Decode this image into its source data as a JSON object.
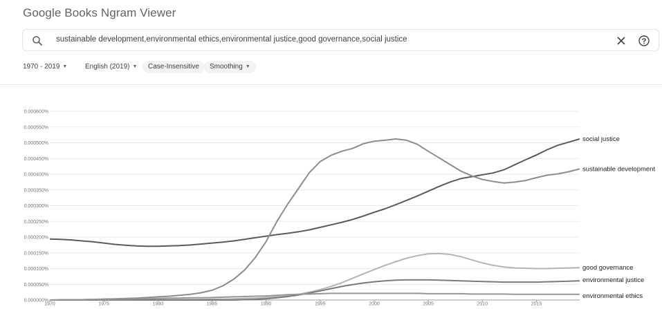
{
  "header": {
    "logo": "Google",
    "title": "Books Ngram Viewer"
  },
  "search": {
    "query": "sustainable development,environmental ethics,environmental justice,good governance,social justice",
    "icons": [
      "search-icon",
      "close-icon",
      "help-icon"
    ]
  },
  "filters": {
    "year_range": "1970 - 2019",
    "corpus": "English (2019)",
    "case": "Case-Insensitive",
    "smoothing": "Smoothing"
  },
  "chart_data": {
    "type": "line",
    "title": "",
    "xlabel": "",
    "ylabel": "",
    "x": [
      1970,
      1971,
      1972,
      1973,
      1974,
      1975,
      1976,
      1977,
      1978,
      1979,
      1980,
      1981,
      1982,
      1983,
      1984,
      1985,
      1986,
      1987,
      1988,
      1989,
      1990,
      1991,
      1992,
      1993,
      1994,
      1995,
      1996,
      1997,
      1998,
      1999,
      2000,
      2001,
      2002,
      2003,
      2004,
      2005,
      2006,
      2007,
      2008,
      2009,
      2010,
      2011,
      2012,
      2013,
      2014,
      2015,
      2016,
      2017,
      2018,
      2019
    ],
    "xticks": [
      "1970",
      "1975",
      "1980",
      "1985",
      "1990",
      "1995",
      "2000",
      "2005",
      "2010",
      "2015"
    ],
    "yticks": [
      "0.000000%",
      "0.000050%",
      "0.000100%",
      "0.000150%",
      "0.000200%",
      "0.000250%",
      "0.000300%",
      "0.000350%",
      "0.000400%",
      "0.000450%",
      "0.000500%",
      "0.000550%",
      "0.000600%"
    ],
    "ylim": [
      0,
      0.0006
    ],
    "grid": true,
    "series": [
      {
        "name": "social justice",
        "color": "#5a5a5a",
        "values": [
          0.000194,
          0.000193,
          0.000191,
          0.000188,
          0.000185,
          0.000181,
          0.000177,
          0.000174,
          0.000172,
          0.000171,
          0.000171,
          0.000172,
          0.000173,
          0.000175,
          0.000178,
          0.000181,
          0.000184,
          0.000188,
          0.000193,
          0.000198,
          0.000203,
          0.000208,
          0.000212,
          0.000217,
          0.000223,
          0.000231,
          0.000239,
          0.000247,
          0.000256,
          0.000267,
          0.000279,
          0.00029,
          0.000303,
          0.000317,
          0.000331,
          0.000346,
          0.000361,
          0.000375,
          0.000386,
          0.000392,
          0.000398,
          0.000404,
          0.000414,
          0.00043,
          0.000446,
          0.000461,
          0.000478,
          0.000492,
          0.000502,
          0.000512
        ]
      },
      {
        "name": "sustainable development",
        "color": "#8c8c8c",
        "values": [
          0.0,
          0.0,
          0.0,
          1e-06,
          2e-06,
          3e-06,
          4e-06,
          5e-06,
          6e-06,
          8e-06,
          1e-05,
          1.2e-05,
          1.5e-05,
          1.8e-05,
          2.3e-05,
          3.1e-05,
          4.5e-05,
          6.6e-05,
          9.5e-05,
          0.000135,
          0.000186,
          0.00025,
          0.000305,
          0.000355,
          0.000405,
          0.00044,
          0.00046,
          0.000473,
          0.000482,
          0.000497,
          0.000505,
          0.000508,
          0.000512,
          0.000508,
          0.000495,
          0.000473,
          0.000452,
          0.000431,
          0.00041,
          0.000395,
          0.000383,
          0.000377,
          0.000372,
          0.000375,
          0.00038,
          0.000389,
          0.000397,
          0.000401,
          0.000408,
          0.000417
        ]
      },
      {
        "name": "good governance",
        "color": "#b4b4b4",
        "values": [
          0,
          0,
          0,
          0,
          0,
          0,
          0,
          0,
          0,
          0,
          1e-06,
          1e-06,
          1e-06,
          2e-06,
          2e-06,
          3e-06,
          3e-06,
          4e-06,
          5e-06,
          6e-06,
          8e-06,
          1e-05,
          1.3e-05,
          1.8e-05,
          2.5e-05,
          3.3e-05,
          4.3e-05,
          5.5e-05,
          6.9e-05,
          8.3e-05,
          9.7e-05,
          0.00011,
          0.000122,
          0.000133,
          0.000141,
          0.000147,
          0.000148,
          0.000145,
          0.000138,
          0.000128,
          0.000118,
          0.00011,
          0.000105,
          0.000102,
          0.000101,
          0.0001,
          0.0001,
          0.000101,
          0.000102,
          0.000103
        ]
      },
      {
        "name": "environmental justice",
        "color": "#7a7a7a",
        "values": [
          0,
          0,
          0,
          0,
          0,
          0,
          0,
          0,
          0,
          0,
          0,
          0,
          0,
          0,
          0,
          0,
          0,
          0,
          1e-06,
          2e-06,
          4e-06,
          7e-06,
          1.1e-05,
          1.6e-05,
          2.2e-05,
          2.9e-05,
          3.6e-05,
          4.3e-05,
          4.9e-05,
          5.4e-05,
          5.8e-05,
          6.1e-05,
          6.3e-05,
          6.4e-05,
          6.4e-05,
          6.4e-05,
          6.3e-05,
          6.2e-05,
          6.1e-05,
          6e-05,
          5.9e-05,
          5.8e-05,
          5.7e-05,
          5.7e-05,
          5.7e-05,
          5.7e-05,
          5.8e-05,
          5.9e-05,
          6e-05,
          6.1e-05
        ]
      },
      {
        "name": "environmental ethics",
        "color": "#969696",
        "values": [
          0.0,
          1e-06,
          1e-06,
          1e-06,
          2e-06,
          2e-06,
          3e-06,
          3e-06,
          4e-06,
          4e-06,
          5e-06,
          6e-06,
          6e-06,
          7e-06,
          7e-06,
          8e-06,
          9e-06,
          1e-05,
          1.1e-05,
          1.2e-05,
          1.3e-05,
          1.5e-05,
          1.7e-05,
          1.8e-05,
          1.9e-05,
          2e-05,
          2.1e-05,
          2.1e-05,
          2.1e-05,
          2.1e-05,
          2.1e-05,
          2.1e-05,
          2.1e-05,
          2.1e-05,
          2.1e-05,
          2e-05,
          2e-05,
          2e-05,
          2e-05,
          1.9e-05,
          1.9e-05,
          1.9e-05,
          1.9e-05,
          1.8e-05,
          1.8e-05,
          1.8e-05,
          1.8e-05,
          1.8e-05,
          1.8e-05,
          1.8e-05
        ]
      }
    ]
  }
}
